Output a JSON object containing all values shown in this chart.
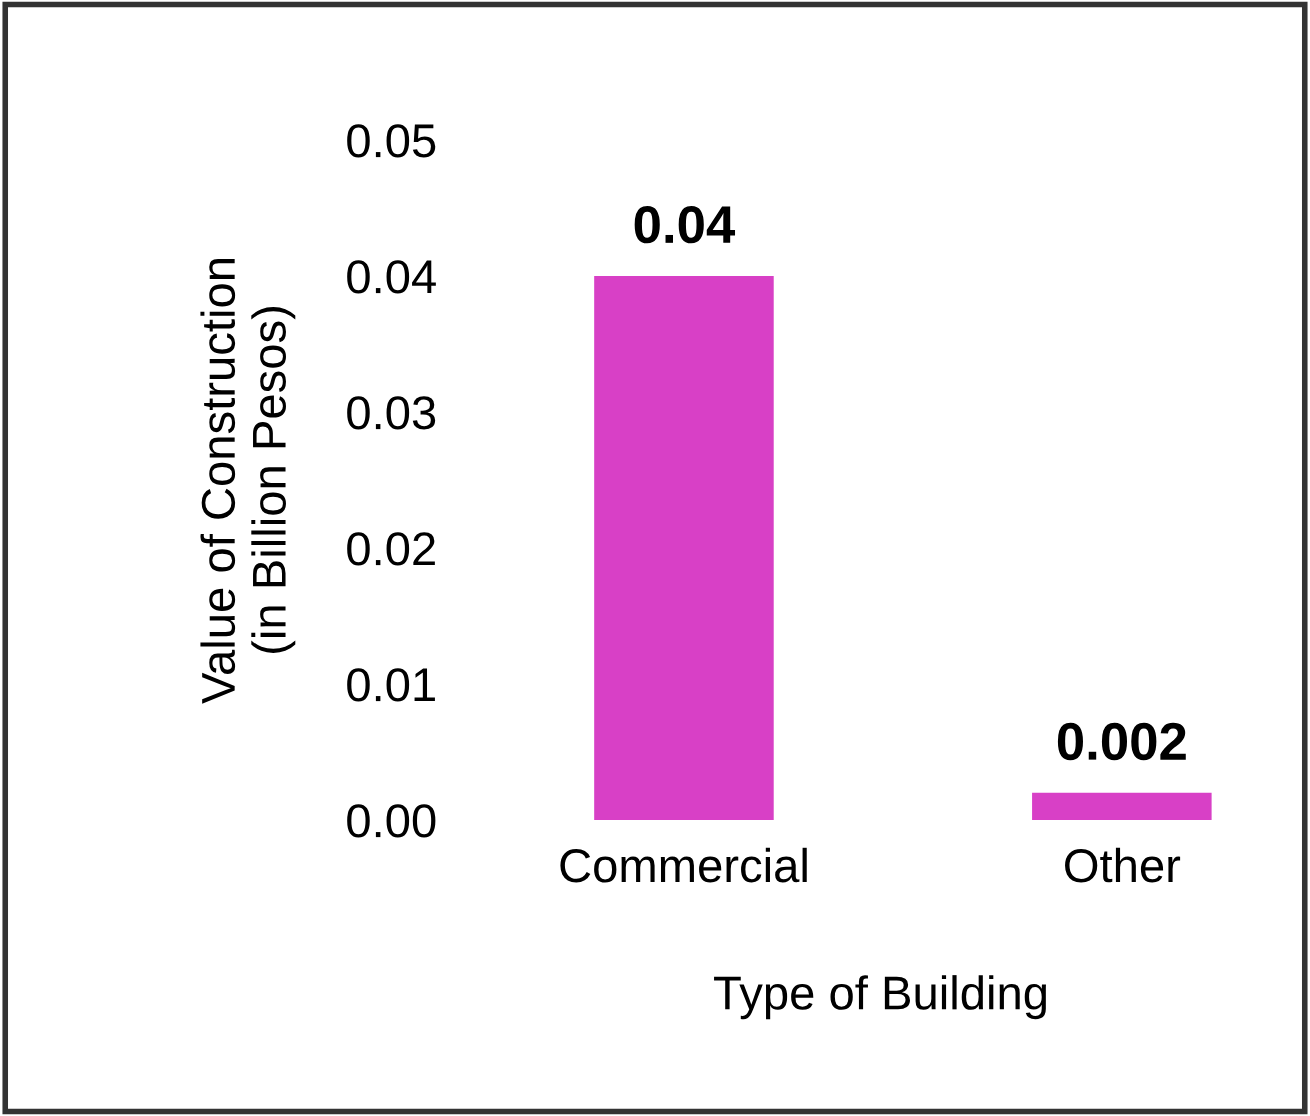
{
  "chart_data": {
    "type": "bar",
    "xlabel": "Type of Building",
    "ylabel": "Value of Construction\n(in Billion Pesos)",
    "categories": [
      "Commercial",
      "Other"
    ],
    "values": [
      0.04,
      0.002
    ],
    "value_labels": [
      "0.04",
      "0.002"
    ],
    "color": "#d840c6",
    "ylim": [
      0,
      0.05
    ],
    "yticks": [
      {
        "value": 0,
        "label": "0.00"
      },
      {
        "value": 0.01,
        "label": "0.01"
      },
      {
        "value": 0.02,
        "label": "0.02"
      },
      {
        "value": 0.03,
        "label": "0.03"
      },
      {
        "value": 0.04,
        "label": "0.04"
      },
      {
        "value": 0.05,
        "label": "0.05"
      }
    ],
    "grid": false
  }
}
